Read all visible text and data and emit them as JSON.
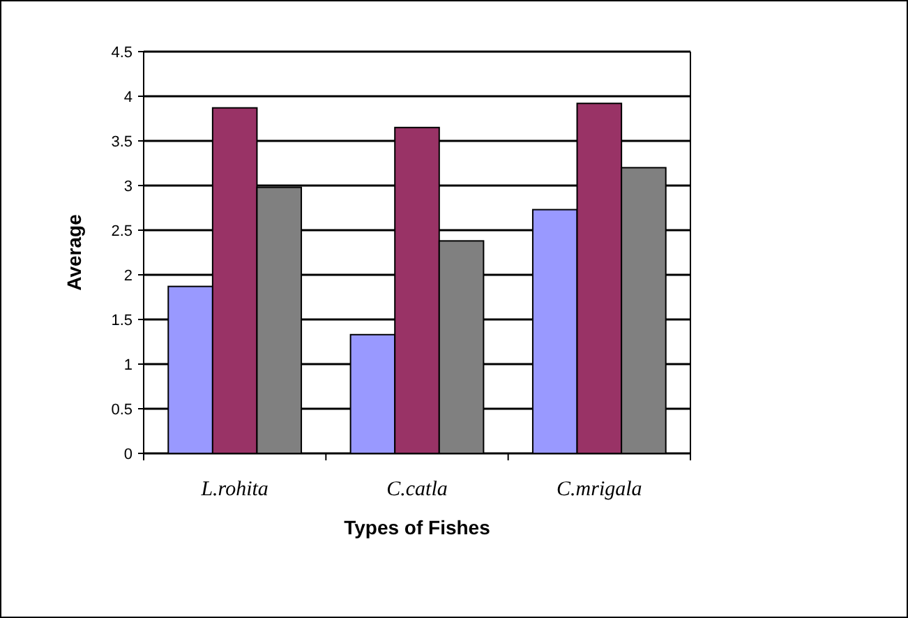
{
  "chart_data": {
    "type": "bar",
    "xlabel": "Types of Fishes",
    "ylabel": "Average",
    "categories": [
      "L.rohita",
      "C.catla",
      "C.mrigala"
    ],
    "series": [
      {
        "color": "#9999ff",
        "values": [
          1.87,
          1.33,
          2.73
        ]
      },
      {
        "color": "#993366",
        "values": [
          3.87,
          3.65,
          3.92
        ]
      },
      {
        "color": "#808080",
        "values": [
          2.98,
          2.38,
          3.2
        ]
      }
    ],
    "ylim": [
      0,
      4.5
    ],
    "yticks": [
      0,
      0.5,
      1,
      1.5,
      2,
      2.5,
      3,
      3.5,
      4,
      4.5
    ],
    "grid": "y"
  }
}
